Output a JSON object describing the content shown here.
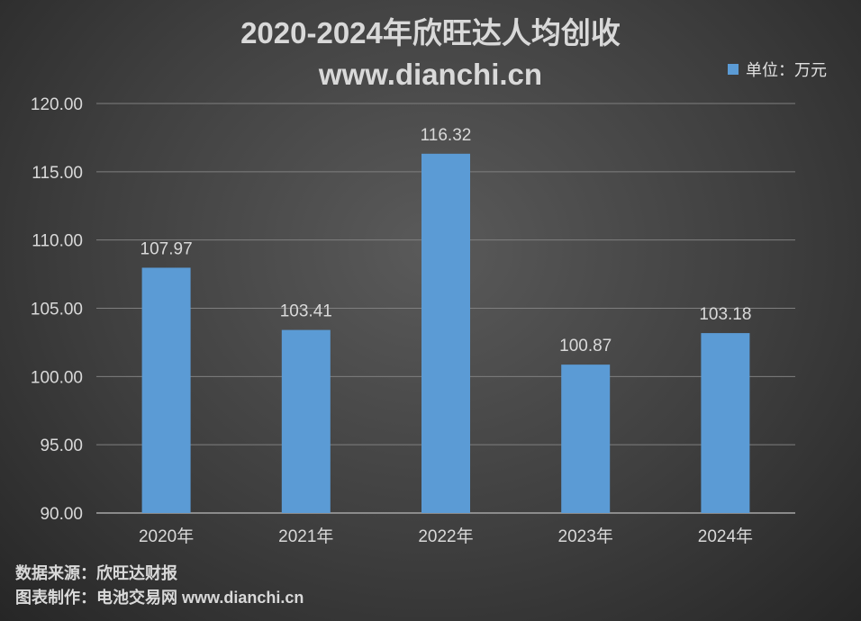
{
  "title_line1": "2020-2024年欣旺达人均创收",
  "title_line2": "www.dianchi.cn",
  "legend_label": "单位：万元",
  "footer_source": "数据来源：欣旺达财报",
  "footer_credit": "图表制作：电池交易网 www.dianchi.cn",
  "chart_data": {
    "type": "bar",
    "title": "2020-2024年欣旺达人均创收",
    "categories": [
      "2020年",
      "2021年",
      "2022年",
      "2023年",
      "2024年"
    ],
    "series": [
      {
        "name": "单位：万元",
        "values": [
          107.97,
          103.41,
          116.32,
          100.87,
          103.18
        ]
      }
    ],
    "ylim": [
      90,
      120
    ],
    "yticks": [
      "90.00",
      "95.00",
      "100.00",
      "105.00",
      "110.00",
      "115.00",
      "120.00"
    ],
    "value_labels": [
      "107.97",
      "103.41",
      "116.32",
      "100.87",
      "103.18"
    ],
    "grid": true,
    "legend_position": "top-right",
    "colors": {
      "bar": "#5b9bd5",
      "axis_text": "#d9d9d9",
      "grid": "#7f7f7f"
    }
  }
}
